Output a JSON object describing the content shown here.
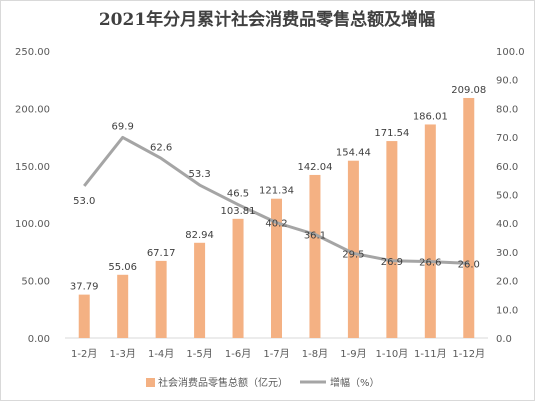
{
  "chart_data": {
    "type": "bar",
    "title": "2021年分月累计社会消费品零售总额及增幅",
    "categories": [
      "1-2月",
      "1-3月",
      "1-4月",
      "1-5月",
      "1-6月",
      "1-7月",
      "1-8月",
      "1-9月",
      "1-10月",
      "1-11月",
      "1-12月"
    ],
    "series": [
      {
        "name": "社会消费品零售总额（亿元）",
        "type": "bar",
        "axis": "left",
        "color": "#F4B183",
        "values": [
          37.79,
          55.06,
          67.17,
          82.94,
          103.81,
          121.34,
          142.04,
          154.44,
          171.54,
          186.01,
          209.08
        ],
        "labels": [
          "37.79",
          "55.06",
          "67.17",
          "82.94",
          "103.81",
          "121.34",
          "142.04",
          "154.44",
          "171.54",
          "186.01",
          "209.08"
        ]
      },
      {
        "name": "增幅（%）",
        "type": "line",
        "axis": "right",
        "color": "#A5A5A5",
        "values": [
          53.0,
          69.9,
          62.6,
          53.3,
          46.5,
          40.2,
          36.1,
          29.5,
          26.9,
          26.6,
          26.0
        ],
        "labels": [
          "53.0",
          "69.9",
          "62.6",
          "53.3",
          "46.5",
          "40.2",
          "36.1",
          "29.5",
          "26.9",
          "26.6",
          "26.0"
        ]
      }
    ],
    "y_left": {
      "lim": [
        0,
        250
      ],
      "ticks": [
        "0.00",
        "50.00",
        "100.00",
        "150.00",
        "200.00",
        "250.00"
      ]
    },
    "y_right": {
      "lim": [
        0,
        100
      ],
      "ticks": [
        "0.0",
        "10.0",
        "20.0",
        "30.0",
        "40.0",
        "50.0",
        "60.0",
        "70.0",
        "80.0",
        "90.0",
        "100.0"
      ]
    },
    "grid": false,
    "legend_position": "bottom"
  }
}
